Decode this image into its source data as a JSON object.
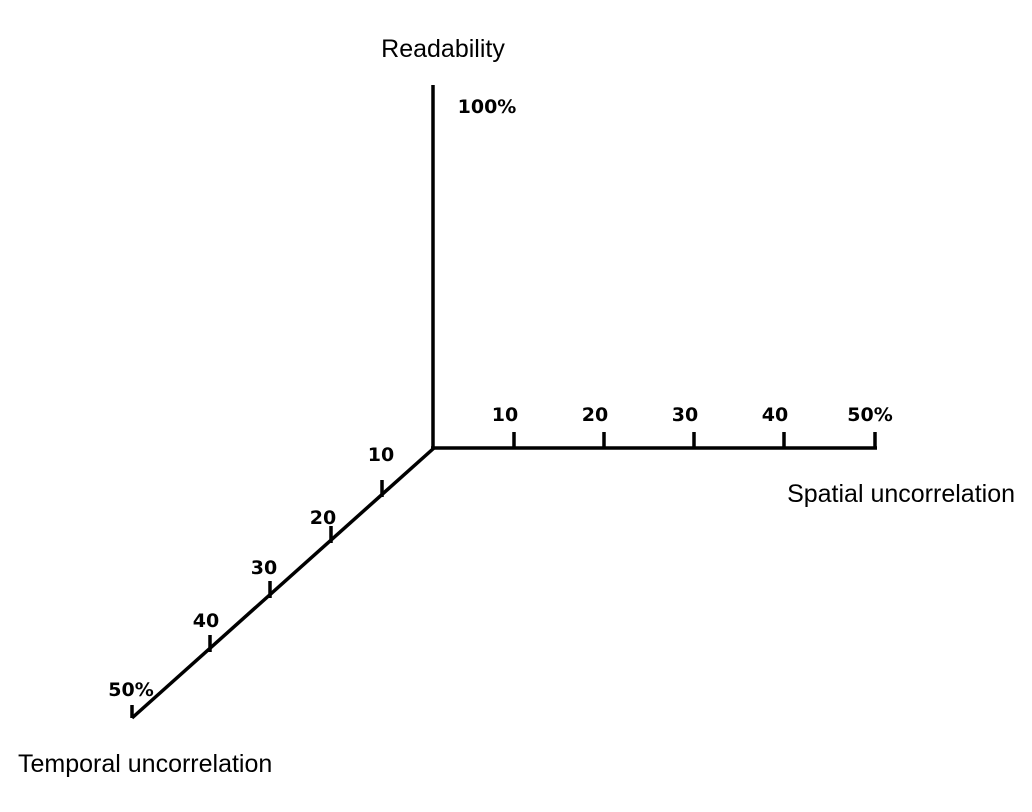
{
  "axes": {
    "vertical": {
      "label": "Readability",
      "end_label": "100%"
    },
    "horizontal": {
      "label": "Spatial uncorrelation",
      "ticks": [
        "10",
        "20",
        "30",
        "40",
        "50%"
      ]
    },
    "diagonal": {
      "label": "Temporal uncorrelation",
      "ticks": [
        "10",
        "20",
        "30",
        "40",
        "50%"
      ]
    }
  }
}
